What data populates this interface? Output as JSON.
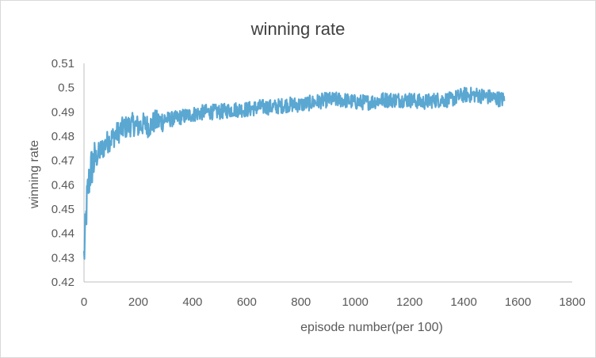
{
  "chart_data": {
    "type": "line",
    "title": "winning rate",
    "xlabel": "episode number(per 100)",
    "ylabel": "winning rate",
    "xlim": [
      0,
      1800
    ],
    "ylim": [
      0.42,
      0.51
    ],
    "xticks": [
      0,
      200,
      400,
      600,
      800,
      1000,
      1200,
      1400,
      1600,
      1800
    ],
    "yticks": [
      0.42,
      0.43,
      0.44,
      0.45,
      0.46,
      0.47,
      0.48,
      0.49,
      0.5,
      0.51
    ],
    "ytick_labels": [
      "0.42",
      "0.43",
      "0.44",
      "0.45",
      "0.46",
      "0.47",
      "0.48",
      "0.49",
      "0.5",
      "0.51"
    ],
    "xtick_labels": [
      "0",
      "200",
      "400",
      "600",
      "800",
      "1000",
      "1200",
      "1400",
      "1600",
      "1800"
    ],
    "grid": false,
    "legend": "none",
    "series": [
      {
        "color": "#5aa7d2",
        "x": [
          0,
          5,
          10,
          15,
          20,
          25,
          30,
          40,
          50,
          60,
          70,
          80,
          90,
          100,
          120,
          140,
          160,
          180,
          200,
          220,
          240,
          260,
          280,
          300,
          330,
          360,
          400,
          450,
          500,
          550,
          600,
          650,
          700,
          750,
          800,
          850,
          900,
          950,
          1000,
          1050,
          1100,
          1150,
          1200,
          1250,
          1300,
          1350,
          1400,
          1450,
          1500,
          1550
        ],
        "y": [
          0.43,
          0.44,
          0.452,
          0.458,
          0.463,
          0.466,
          0.468,
          0.47,
          0.472,
          0.474,
          0.475,
          0.477,
          0.478,
          0.479,
          0.481,
          0.483,
          0.484,
          0.485,
          0.484,
          0.485,
          0.484,
          0.486,
          0.486,
          0.487,
          0.487,
          0.488,
          0.489,
          0.49,
          0.49,
          0.491,
          0.491,
          0.492,
          0.492,
          0.493,
          0.493,
          0.494,
          0.495,
          0.495,
          0.494,
          0.494,
          0.495,
          0.495,
          0.495,
          0.494,
          0.495,
          0.495,
          0.497,
          0.497,
          0.496,
          0.495
        ]
      }
    ]
  }
}
